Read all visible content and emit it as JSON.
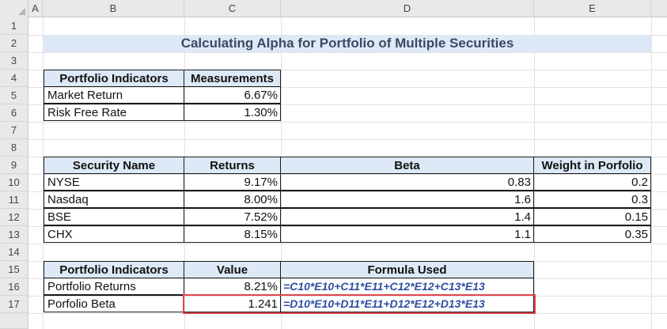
{
  "columns": [
    "A",
    "B",
    "C",
    "D",
    "E"
  ],
  "rows": [
    "1",
    "2",
    "3",
    "4",
    "5",
    "6",
    "7",
    "8",
    "9",
    "10",
    "11",
    "12",
    "13",
    "14",
    "15",
    "16",
    "17"
  ],
  "title": "Calculating Alpha for Portfolio of Multiple Securities",
  "table1": {
    "headers": [
      "Portfolio Indicators",
      "Measurements"
    ],
    "rows": [
      [
        "Market Return",
        "6.67%"
      ],
      [
        "Risk Free Rate",
        "1.30%"
      ]
    ]
  },
  "table2": {
    "headers": [
      "Security Name",
      "Returns",
      "Beta",
      "Weight in Porfolio"
    ],
    "rows": [
      [
        "NYSE",
        "9.17%",
        "0.83",
        "0.2"
      ],
      [
        "Nasdaq",
        "8.00%",
        "1.6",
        "0.3"
      ],
      [
        "BSE",
        "7.52%",
        "1.4",
        "0.15"
      ],
      [
        "CHX",
        "8.15%",
        "1.1",
        "0.35"
      ]
    ]
  },
  "table3": {
    "headers": [
      "Portfolio Indicators",
      "Value",
      "Formula Used"
    ],
    "rows": [
      [
        "Portfolio Returns",
        "8.21%",
        "=C10*E10+C11*E11+C12*E12+C13*E13"
      ],
      [
        "Porfolio Beta",
        "1.241",
        "=D10*E10+D11*E11+D12*E12+D13*E13"
      ]
    ]
  },
  "colors": {
    "header_fill": "#dde9f6",
    "title_text": "#3a4a63",
    "formula_text": "#2e4fa0",
    "highlight": "#e0474c"
  }
}
